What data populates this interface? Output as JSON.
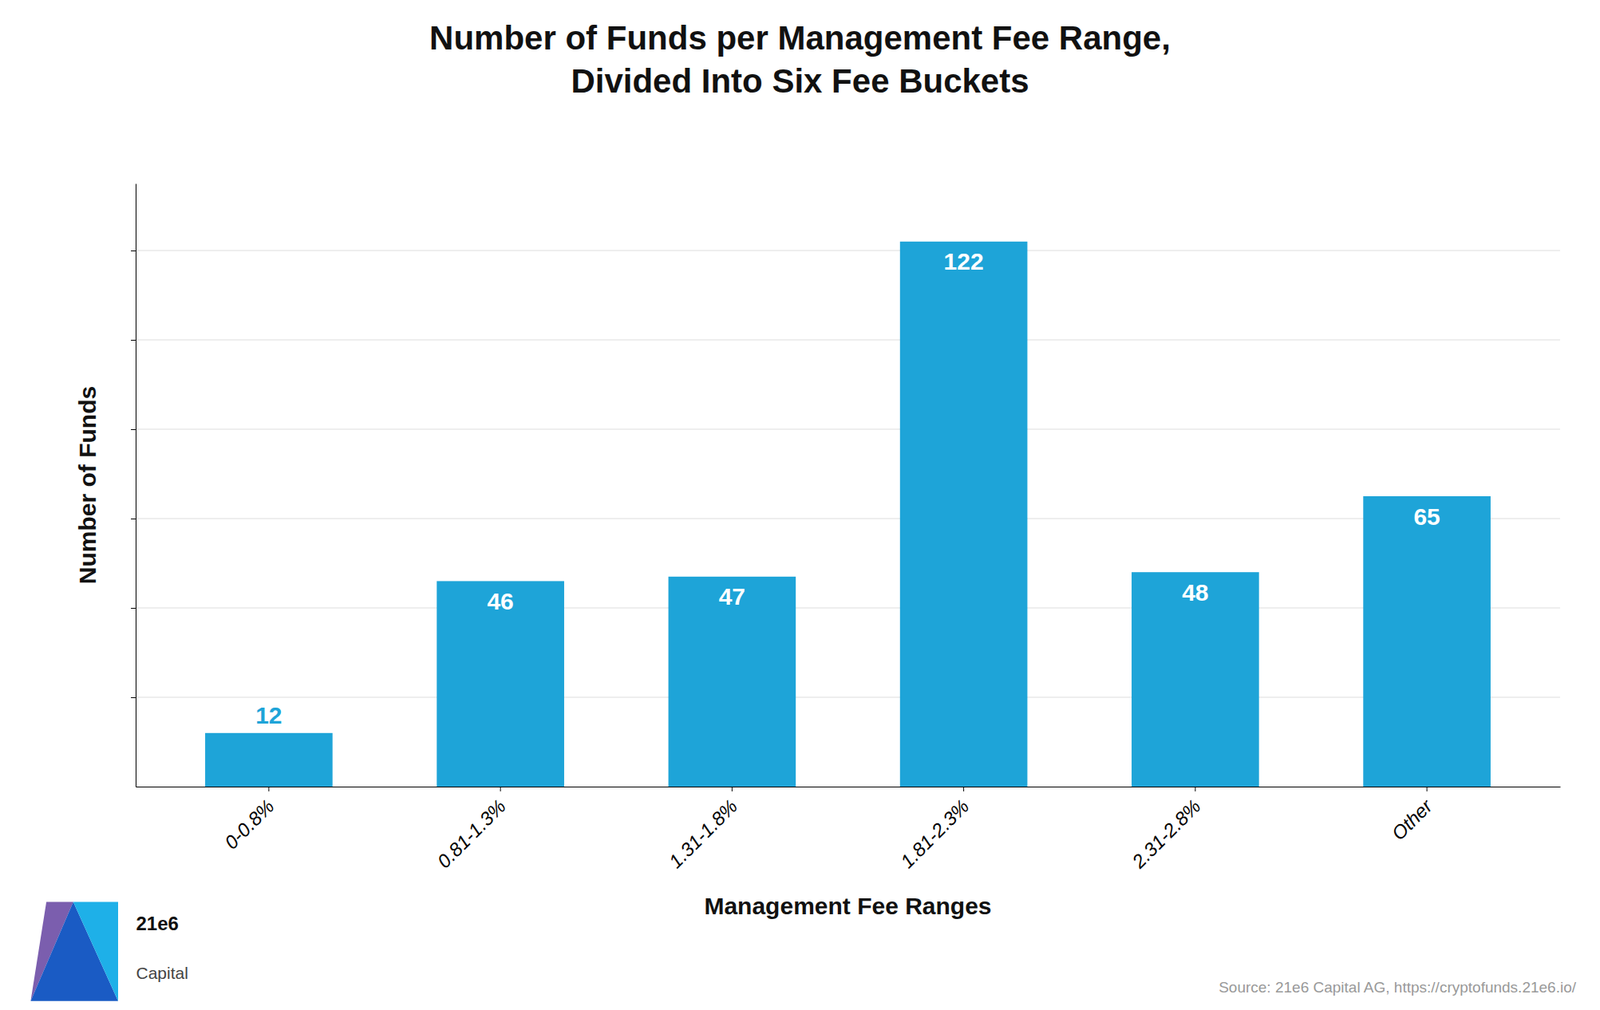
{
  "chart_data": {
    "type": "bar",
    "title": "Number of Funds per Management Fee Range,\nDivided Into Six Fee Buckets",
    "categories": [
      "0-0.8%",
      "0.81-1.3%",
      "1.31-1.8%",
      "1.81-2.3%",
      "2.31-2.8%",
      "Other"
    ],
    "values": [
      12,
      46,
      47,
      122,
      48,
      65
    ],
    "color": "#1EA4D8",
    "xlabel": "Management Fee Ranges",
    "ylabel": "Number of Funds",
    "ylim": [
      0,
      135
    ],
    "yticks": [
      20,
      40,
      60,
      80,
      100,
      120
    ],
    "grid": true,
    "data_labels": true,
    "tick_labels": "x",
    "annotations": [
      "Source: 21e6 Capital AG, https://cryptofunds.21e6.io/",
      "21e6",
      "Capital"
    ]
  }
}
